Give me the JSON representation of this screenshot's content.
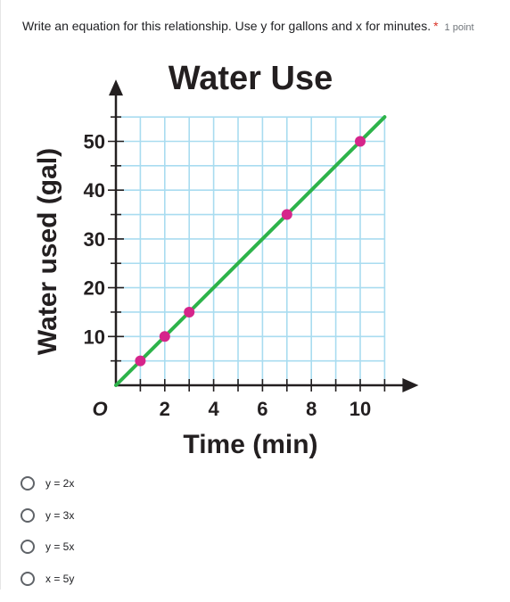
{
  "question": {
    "text": "Write an equation for this relationship. Use y for gallons and x for minutes.",
    "required_mark": "*",
    "points": "1 point"
  },
  "chart_data": {
    "type": "line",
    "title": "Water Use",
    "xlabel": "Time (min)",
    "ylabel": "Water used (gal)",
    "xlim": [
      0,
      11
    ],
    "ylim": [
      0,
      55
    ],
    "x_ticks": [
      0,
      2,
      4,
      6,
      8,
      10
    ],
    "x_tick_labels": [
      "O",
      "2",
      "4",
      "6",
      "8",
      "10"
    ],
    "y_ticks": [
      10,
      20,
      30,
      40,
      50
    ],
    "y_tick_labels": [
      "10",
      "20",
      "30",
      "40",
      "50"
    ],
    "grid": true,
    "series": [
      {
        "x": [
          0,
          11
        ],
        "y": [
          0,
          55
        ],
        "color": "#2db34a"
      }
    ],
    "points": {
      "x": [
        1,
        2,
        3,
        7,
        10
      ],
      "y": [
        5,
        10,
        15,
        35,
        50
      ],
      "color": "#d6258b"
    },
    "grid_color": "#a9dcf0",
    "axis_color": "#231f20"
  },
  "options": [
    {
      "label": "y = 2x"
    },
    {
      "label": "y = 3x"
    },
    {
      "label": "y = 5x"
    },
    {
      "label": "x = 5y"
    }
  ]
}
